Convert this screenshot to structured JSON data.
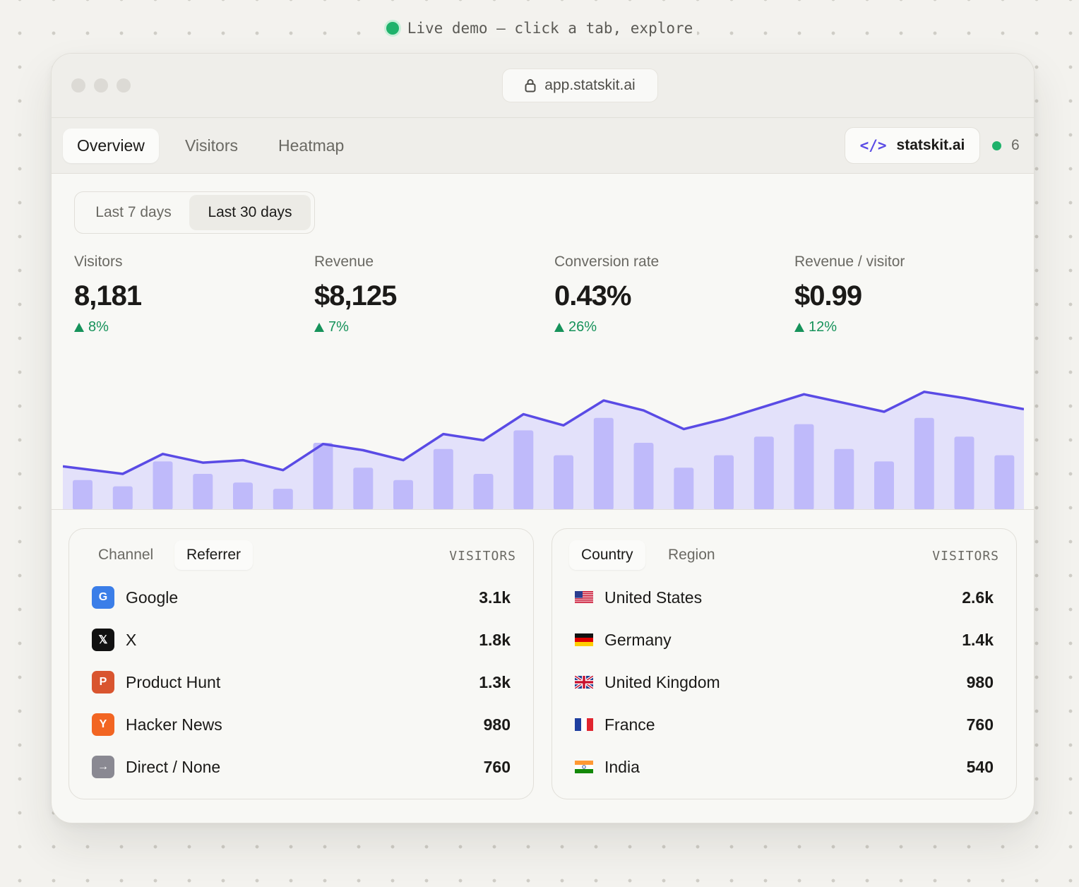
{
  "banner": {
    "text": "Live demo — click a tab, explore"
  },
  "browser": {
    "url": "app.statskit.ai"
  },
  "tabs": [
    {
      "label": "Overview",
      "active": true
    },
    {
      "label": "Visitors",
      "active": false
    },
    {
      "label": "Heatmap",
      "active": false
    }
  ],
  "site": {
    "code_glyph": "</>",
    "name": "statskit.ai",
    "online_count": "6"
  },
  "range": {
    "options": [
      "Last 7 days",
      "Last 30 days"
    ],
    "selected": "Last 30 days"
  },
  "metrics": [
    {
      "label": "Visitors",
      "value": "8,181",
      "change": "8%"
    },
    {
      "label": "Revenue",
      "value": "$8,125",
      "change": "7%"
    },
    {
      "label": "Conversion rate",
      "value": "0.43%",
      "change": "26%"
    },
    {
      "label": "Revenue / visitor",
      "value": "$0.99",
      "change": "12%"
    }
  ],
  "colors": {
    "accent": "#5a4be5",
    "bar": "#bcb6fa",
    "area": "#dcd9fb",
    "positive": "#16925a",
    "live": "#1fb26b"
  },
  "chart_data": {
    "type": "bar",
    "ylim": [
      0,
      100
    ],
    "grid": false,
    "bar_series": [
      24,
      19,
      39,
      29,
      22,
      17,
      54,
      34,
      24,
      49,
      29,
      64,
      44,
      74,
      54,
      34,
      44,
      59,
      69,
      49,
      39,
      74,
      59,
      44
    ],
    "line_series": [
      35,
      29,
      45,
      38,
      40,
      32,
      53,
      48,
      40,
      61,
      56,
      77,
      68,
      88,
      80,
      65,
      73,
      83,
      93,
      86,
      79,
      95,
      90,
      81
    ]
  },
  "referrers": {
    "tabs": [
      {
        "label": "Channel",
        "active": false
      },
      {
        "label": "Referrer",
        "active": true
      }
    ],
    "column": "VISITORS",
    "rows": [
      {
        "name": "Google",
        "value": "3.1k",
        "icon": "google-icon",
        "glyph": "G",
        "color": "#3b7ee8"
      },
      {
        "name": "X",
        "value": "1.8k",
        "icon": "x-icon",
        "glyph": "𝕏",
        "color": "#111111"
      },
      {
        "name": "Product Hunt",
        "value": "1.3k",
        "icon": "product-hunt-icon",
        "glyph": "P",
        "color": "#d9552f"
      },
      {
        "name": "Hacker News",
        "value": "980",
        "icon": "hacker-news-icon",
        "glyph": "Y",
        "color": "#f26522"
      },
      {
        "name": "Direct / None",
        "value": "760",
        "icon": "direct-icon",
        "glyph": "→",
        "color": "#8a8992"
      }
    ]
  },
  "countries": {
    "tabs": [
      {
        "label": "Country",
        "active": true
      },
      {
        "label": "Region",
        "active": false
      }
    ],
    "column": "VISITORS",
    "rows": [
      {
        "name": "United States",
        "value": "2.6k",
        "icon": "us-flag-icon"
      },
      {
        "name": "Germany",
        "value": "1.4k",
        "icon": "germany-flag-icon"
      },
      {
        "name": "United Kingdom",
        "value": "980",
        "icon": "uk-flag-icon"
      },
      {
        "name": "France",
        "value": "760",
        "icon": "france-flag-icon"
      },
      {
        "name": "India",
        "value": "540",
        "icon": "india-flag-icon"
      }
    ]
  }
}
